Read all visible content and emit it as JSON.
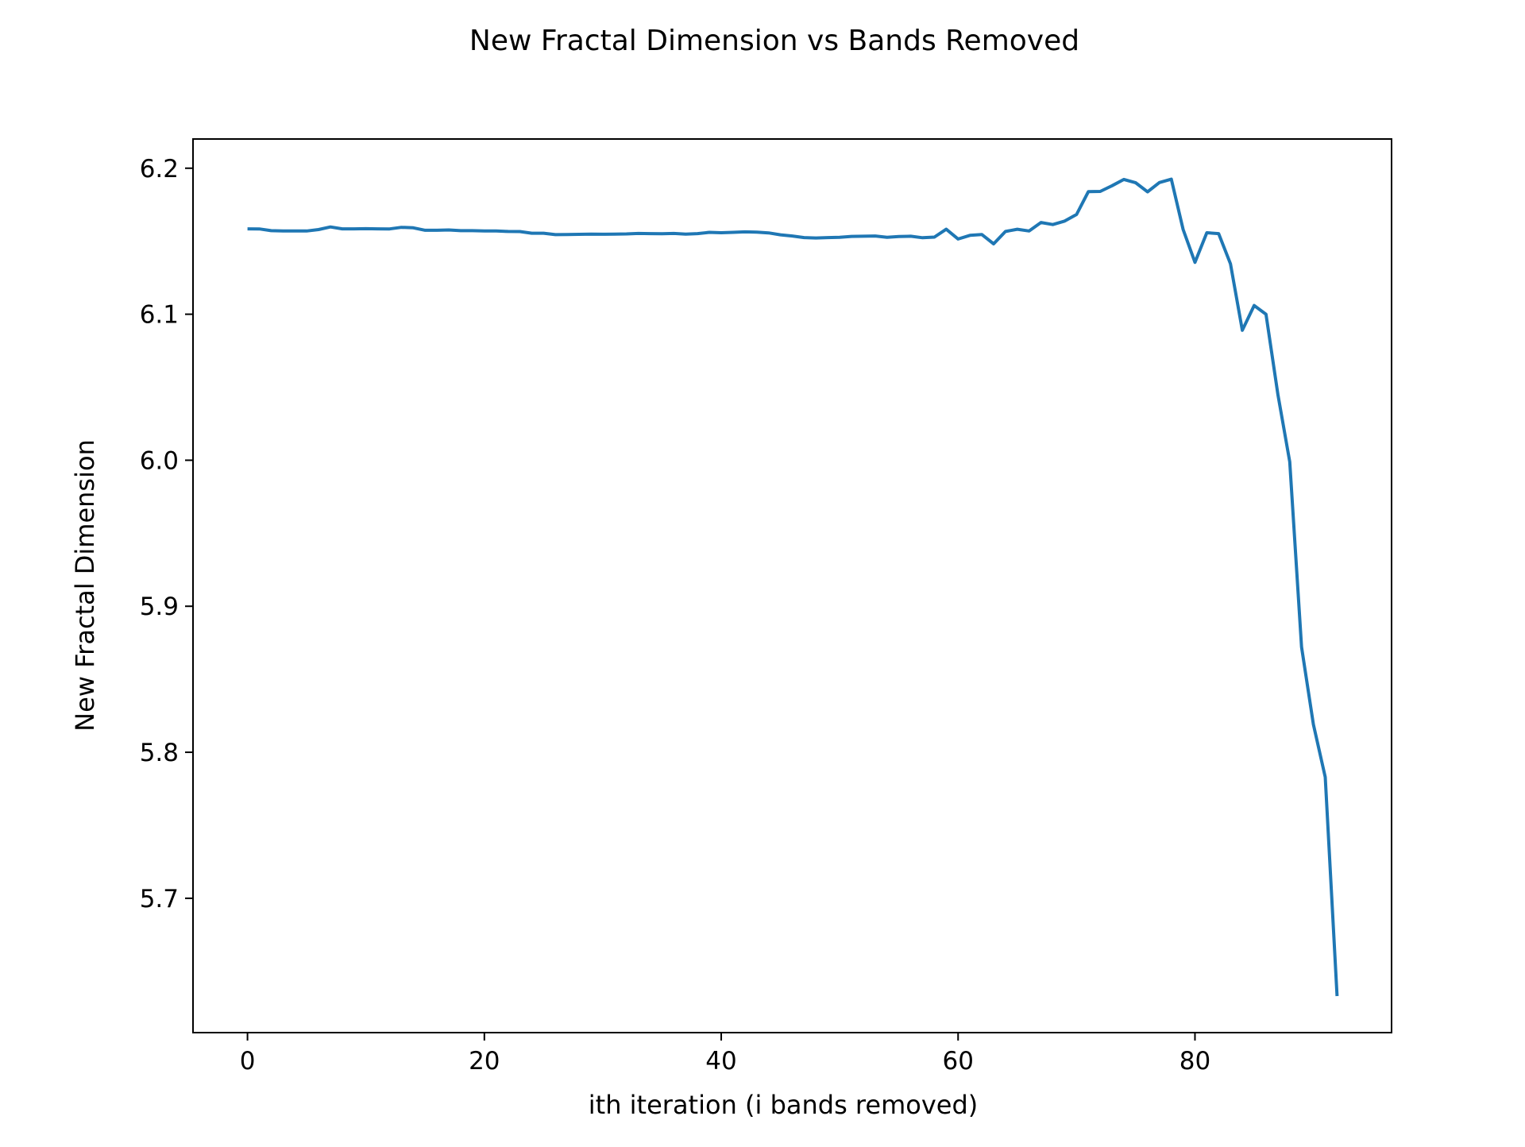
{
  "chart_data": {
    "type": "line",
    "title": "New Fractal Dimension vs Bands Removed",
    "xlabel": "ith iteration (i bands removed)",
    "ylabel": "New Fractal Dimension",
    "xlim": [
      -4.6,
      96.6
    ],
    "ylim": [
      5.608,
      6.22
    ],
    "xticks": [
      0,
      20,
      40,
      60,
      80
    ],
    "yticks": [
      5.7,
      5.8,
      5.9,
      6.0,
      6.1,
      6.2
    ],
    "grid": false,
    "legend": "none",
    "series": [
      {
        "color": "#1f77b4",
        "x": [
          0,
          1,
          2,
          3,
          4,
          5,
          6,
          7,
          8,
          9,
          10,
          11,
          12,
          13,
          14,
          15,
          16,
          17,
          18,
          19,
          20,
          21,
          22,
          23,
          24,
          25,
          26,
          27,
          28,
          29,
          30,
          31,
          32,
          33,
          34,
          35,
          36,
          37,
          38,
          39,
          40,
          41,
          42,
          43,
          44,
          45,
          46,
          47,
          48,
          49,
          50,
          51,
          52,
          53,
          54,
          55,
          56,
          57,
          58,
          59,
          60,
          61,
          62,
          63,
          64,
          65,
          66,
          67,
          68,
          69,
          70,
          71,
          72,
          73,
          74,
          75,
          76,
          77,
          78,
          79,
          80,
          81,
          82,
          83,
          84,
          85,
          86,
          87,
          88,
          89,
          90,
          91,
          92
        ],
        "values": [
          6.1585,
          6.1584,
          6.1572,
          6.157,
          6.157,
          6.157,
          6.158,
          6.1598,
          6.1585,
          6.1585,
          6.1586,
          6.1585,
          6.1584,
          6.1595,
          6.1592,
          6.1575,
          6.1575,
          6.1577,
          6.1572,
          6.1572,
          6.157,
          6.157,
          6.1567,
          6.1566,
          6.1555,
          6.1555,
          6.1545,
          6.1546,
          6.1547,
          6.1549,
          6.1548,
          6.1549,
          6.155,
          6.1553,
          6.1552,
          6.1551,
          6.1553,
          6.1549,
          6.1552,
          6.1561,
          6.1558,
          6.1561,
          6.1564,
          6.1562,
          6.1557,
          6.1544,
          6.1536,
          6.1525,
          6.1522,
          6.1525,
          6.1527,
          6.1533,
          6.1534,
          6.1536,
          6.1527,
          6.1532,
          6.1534,
          6.1524,
          6.1528,
          6.1582,
          6.1515,
          6.154,
          6.1546,
          6.1482,
          6.1567,
          6.1582,
          6.157,
          6.1628,
          6.1614,
          6.1638,
          6.1683,
          6.184,
          6.1841,
          6.188,
          6.1923,
          6.19,
          6.1838,
          6.1902,
          6.1925,
          6.158,
          6.1355,
          6.1558,
          6.1552,
          6.1345,
          6.089,
          6.106,
          6.1,
          6.045,
          5.999,
          5.872,
          5.819,
          5.783,
          5.633
        ]
      }
    ]
  }
}
